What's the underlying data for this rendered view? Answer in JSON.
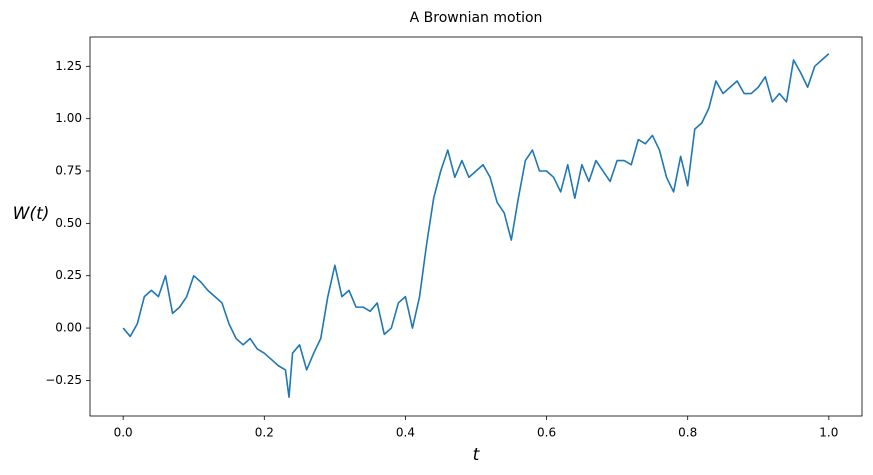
{
  "chart_data": {
    "type": "line",
    "title": "A Brownian motion",
    "x_label": "t",
    "y_label": "W(t)",
    "x": [
      0,
      0.01,
      0.02,
      0.03,
      0.04,
      0.05,
      0.06,
      0.07,
      0.08,
      0.09,
      0.1,
      0.11,
      0.12,
      0.13,
      0.14,
      0.15,
      0.16,
      0.17,
      0.18,
      0.19,
      0.2,
      0.21,
      0.22,
      0.23,
      0.235,
      0.24,
      0.25,
      0.26,
      0.27,
      0.28,
      0.29,
      0.3,
      0.31,
      0.32,
      0.33,
      0.34,
      0.35,
      0.36,
      0.37,
      0.38,
      0.39,
      0.4,
      0.41,
      0.42,
      0.43,
      0.44,
      0.45,
      0.46,
      0.47,
      0.48,
      0.49,
      0.5,
      0.51,
      0.52,
      0.53,
      0.54,
      0.55,
      0.56,
      0.57,
      0.58,
      0.59,
      0.6,
      0.61,
      0.62,
      0.63,
      0.64,
      0.65,
      0.66,
      0.67,
      0.68,
      0.69,
      0.7,
      0.71,
      0.72,
      0.73,
      0.74,
      0.75,
      0.76,
      0.77,
      0.78,
      0.79,
      0.8,
      0.81,
      0.82,
      0.83,
      0.84,
      0.85,
      0.86,
      0.87,
      0.88,
      0.89,
      0.9,
      0.91,
      0.92,
      0.93,
      0.94,
      0.95,
      0.96,
      0.97,
      0.98,
      0.99,
      1.0
    ],
    "series": [
      {
        "name": "W(t)",
        "color": "#1f77b4",
        "values": [
          0,
          -0.04,
          0.02,
          0.15,
          0.18,
          0.15,
          0.25,
          0.07,
          0.1,
          0.15,
          0.25,
          0.22,
          0.18,
          0.15,
          0.12,
          0.02,
          -0.05,
          -0.08,
          -0.05,
          -0.1,
          -0.12,
          -0.15,
          -0.18,
          -0.2,
          -0.33,
          -0.12,
          -0.08,
          -0.2,
          -0.12,
          -0.05,
          0.15,
          0.3,
          0.15,
          0.18,
          0.1,
          0.1,
          0.08,
          0.12,
          -0.03,
          0.0,
          0.12,
          0.15,
          0.0,
          0.15,
          0.4,
          0.62,
          0.75,
          0.85,
          0.72,
          0.8,
          0.72,
          0.75,
          0.78,
          0.72,
          0.6,
          0.55,
          0.42,
          0.62,
          0.8,
          0.85,
          0.75,
          0.75,
          0.72,
          0.65,
          0.78,
          0.62,
          0.78,
          0.7,
          0.8,
          0.75,
          0.7,
          0.8,
          0.8,
          0.78,
          0.9,
          0.88,
          0.92,
          0.85,
          0.72,
          0.65,
          0.82,
          0.68,
          0.95,
          0.98,
          1.05,
          1.18,
          1.12,
          1.15,
          1.18,
          1.12,
          1.12,
          1.15,
          1.2,
          1.08,
          1.12,
          1.08,
          1.28,
          1.22,
          1.15,
          1.25,
          1.28,
          1.31
        ]
      }
    ],
    "xlim": [
      -0.047,
      1.047
    ],
    "ylim": [
      -0.42,
      1.39
    ],
    "xticks": [
      {
        "value": 0,
        "label": "0.0"
      },
      0.2,
      0.4,
      0.6,
      0.8,
      {
        "value": 1,
        "label": "1.0"
      }
    ],
    "yticks": [
      {
        "value": -0.25,
        "label": "−0.25"
      },
      {
        "value": 0,
        "label": "0.00"
      },
      0.25,
      {
        "value": 0.5,
        "label": "0.50"
      },
      0.75,
      {
        "value": 1,
        "label": "1.00"
      },
      1.25
    ],
    "grid": false
  }
}
